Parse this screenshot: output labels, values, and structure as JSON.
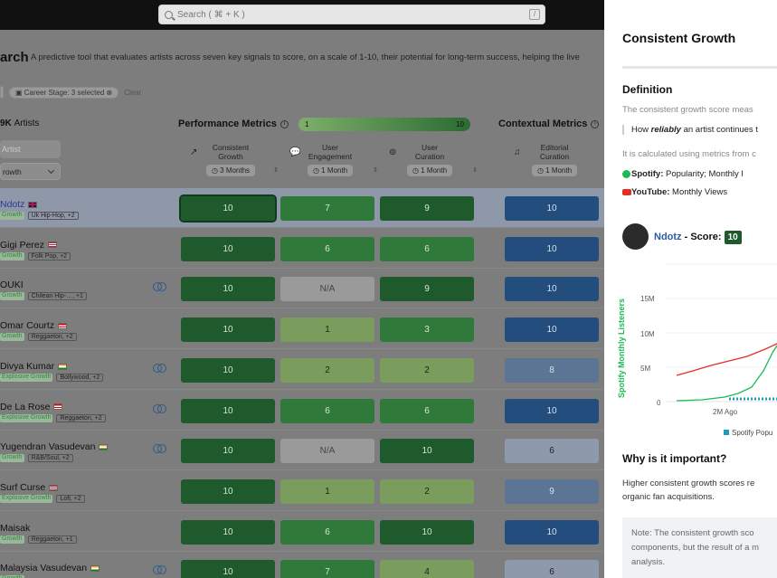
{
  "search": {
    "placeholder": "Search ( ⌘ + K )",
    "shortcut": "/"
  },
  "page": {
    "title": "arch",
    "subtitle": "A predictive tool that evaluates artists across seven key signals to score, on a scale of 1-10, their potential for long-term success, helping the live",
    "filters": {
      "career_stage": "Career Stage: 3 selected",
      "clear": "Clear"
    },
    "artists_count_num": "9K",
    "artists_count_label": "Artists",
    "artist_search_placeholder": "Artist",
    "sort_value": "rowth"
  },
  "performance": {
    "title": "Performance Metrics",
    "scale_min": "1",
    "scale_max": "10"
  },
  "contextual": {
    "title": "Contextual Metrics"
  },
  "columns": [
    {
      "l1": "Consistent",
      "l2": "Growth",
      "period": "3 Months",
      "icon": "growth-arrow-icon"
    },
    {
      "l1": "User",
      "l2": "Engagement",
      "period": "1 Month",
      "icon": "chat-icon"
    },
    {
      "l1": "User",
      "l2": "Curation",
      "period": "1 Month",
      "icon": "user-search-icon"
    },
    {
      "l1": "Editorial",
      "l2": "Curation",
      "period": "1 Month",
      "icon": "playlist-icon"
    }
  ],
  "artists": [
    {
      "name": "Ndotz",
      "stage": "Growth",
      "genre": "Uk Hip-Hop, +2",
      "flag": "uk",
      "link": false,
      "scores": [
        "10",
        "7",
        "9",
        "10"
      ],
      "tones": [
        "g-dark sel",
        "g-mid",
        "g-dark",
        "b-dark"
      ],
      "highlight": true
    },
    {
      "name": "Gigi Perez",
      "stage": "Growth",
      "genre": "Folk Pop, +2",
      "flag": "us",
      "link": false,
      "scores": [
        "10",
        "6",
        "6",
        "10"
      ],
      "tones": [
        "g-dark",
        "g-mid",
        "g-mid",
        "b-dark"
      ]
    },
    {
      "name": "OUKI",
      "stage": "Growth",
      "genre": "Chilean Hip-…, +1",
      "flag": "",
      "link": true,
      "scores": [
        "10",
        "N/A",
        "9",
        "10"
      ],
      "tones": [
        "g-dark",
        "na",
        "g-dark",
        "b-dark"
      ]
    },
    {
      "name": "Omar Courtz",
      "stage": "Growth",
      "genre": "Reggaeton, +2",
      "flag": "pr",
      "link": false,
      "scores": [
        "10",
        "1",
        "3",
        "10"
      ],
      "tones": [
        "g-dark",
        "g-light",
        "g-mid",
        "b-dark"
      ]
    },
    {
      "name": "Divya Kumar",
      "stage": "Explosive Growth",
      "genre": "Bollywood, +2",
      "flag": "in",
      "link": true,
      "scores": [
        "10",
        "2",
        "2",
        "8"
      ],
      "tones": [
        "g-dark",
        "g-light",
        "g-light",
        "b-mid"
      ]
    },
    {
      "name": "De La Rose",
      "stage": "Explosive Growth",
      "genre": "Reggaeton, +2",
      "flag": "pr",
      "link": true,
      "scores": [
        "10",
        "6",
        "6",
        "10"
      ],
      "tones": [
        "g-dark",
        "g-mid",
        "g-mid",
        "b-dark"
      ]
    },
    {
      "name": "Yugendran Vasudevan",
      "stage": "Growth",
      "genre": "R&B/Soul, +2",
      "flag": "in",
      "link": true,
      "scores": [
        "10",
        "N/A",
        "10",
        "6"
      ],
      "tones": [
        "g-dark",
        "na",
        "g-dark",
        "b-light"
      ]
    },
    {
      "name": "Surf Curse",
      "stage": "Explosive Growth",
      "genre": "Lofi, +2",
      "flag": "us",
      "link": false,
      "scores": [
        "10",
        "1",
        "2",
        "9"
      ],
      "tones": [
        "g-dark",
        "g-light",
        "g-light",
        "b-mid"
      ]
    },
    {
      "name": "Maisak",
      "stage": "Growth",
      "genre": "Reggaeton, +1",
      "flag": "",
      "link": false,
      "scores": [
        "10",
        "6",
        "10",
        "10"
      ],
      "tones": [
        "g-dark",
        "g-mid",
        "g-dark",
        "b-dark"
      ]
    },
    {
      "name": "Malaysia Vasudevan",
      "stage": "Growth",
      "genre": "",
      "flag": "in",
      "link": true,
      "scores": [
        "10",
        "7",
        "4",
        "6"
      ],
      "tones": [
        "g-dark",
        "g-mid",
        "g-light",
        "b-light"
      ]
    }
  ],
  "panel": {
    "title": "Consistent Growth",
    "definition_title": "Definition",
    "def_line1": "The consistent growth score meas",
    "def_quote_pre": "How ",
    "def_quote_em": "reliably",
    "def_quote_post": " an artist continues t",
    "def_line2": "It is calculated using metrics from c",
    "src1_label": "Spotify:",
    "src1_text": " Popularity; Monthly l",
    "src2_label": "YouTube:",
    "src2_text": " Monthly Views",
    "artist_name": "Ndotz",
    "score_label": " - Score:",
    "score": "10",
    "y_axis_label": "Spotify Monthly Listeners",
    "y_ticks": [
      "15M",
      "10M",
      "5M",
      "0"
    ],
    "x_tick": "2M Ago",
    "legend": "Spotify Popu",
    "why_title": "Why is it important?",
    "why_1": "Higher consistent growth scores re",
    "why_2": "organic fan acquisitions.",
    "note_1": "Note: The consistent growth sco",
    "note_2": "components, but the result of a m",
    "note_3": "analysis."
  },
  "colors": {
    "score_dark_green": "#1e5a2c",
    "editorial_blue": "#234d7d",
    "spotify_green": "#1db954",
    "youtube_red": "#e52d27"
  }
}
